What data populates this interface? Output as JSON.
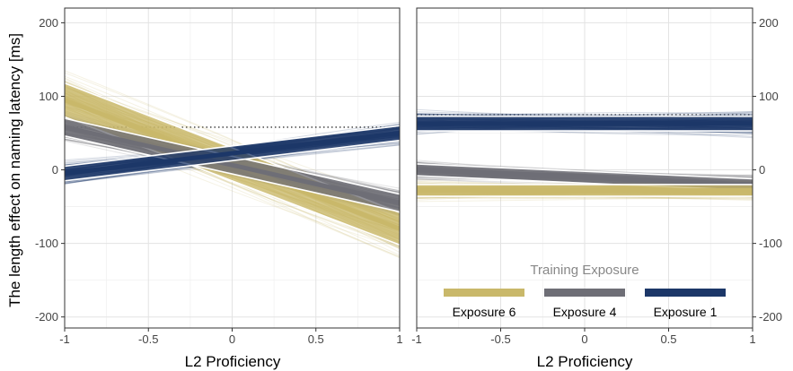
{
  "chart_data": [
    {
      "type": "line",
      "panel": "left",
      "xlabel": "L2 Proficiency",
      "ylabel": "The length effect on naming latency [ms]",
      "xlim": [
        -1,
        1
      ],
      "ylim": [
        -215,
        220
      ],
      "x_ticks": [
        -1,
        -0.5,
        0,
        0.5,
        1
      ],
      "x_tick_labels": [
        "-1",
        "-0.5",
        "0",
        "0.5",
        "1"
      ],
      "y_ticks": [
        200,
        100,
        0,
        -100,
        -200
      ],
      "y_tick_labels": [
        "200",
        "100",
        "0",
        "-100",
        "-200"
      ],
      "y_axis_side": "left",
      "grid": true,
      "reference_line": {
        "y": 58,
        "style": "dotted"
      },
      "x": [
        -1,
        1
      ],
      "series": [
        {
          "name": "Exposure 6",
          "color": "#c9b86a",
          "values": [
            95,
            -80
          ],
          "band": [
            [
              118,
              72
            ],
            [
              -58,
              -102
            ]
          ]
        },
        {
          "name": "Exposure 4",
          "color": "#6e6e76",
          "values": [
            58,
            -45
          ],
          "band": [
            [
              70,
              46
            ],
            [
              -33,
              -57
            ]
          ]
        },
        {
          "name": "Exposure 1",
          "color": "#1c3768",
          "values": [
            -5,
            50
          ],
          "band": [
            [
              5,
              -15
            ],
            [
              60,
              40
            ]
          ]
        }
      ]
    },
    {
      "type": "line",
      "panel": "right",
      "xlabel": "L2 Proficiency",
      "xlim": [
        -1,
        1
      ],
      "ylim": [
        -215,
        220
      ],
      "x_ticks": [
        -1,
        -0.5,
        0,
        0.5,
        1
      ],
      "x_tick_labels": [
        "-1",
        "-0.5",
        "0",
        "0.5",
        "1"
      ],
      "y_ticks": [
        200,
        100,
        0,
        -100,
        -200
      ],
      "y_tick_labels": [
        "200",
        "100",
        "0",
        "-100",
        "-200"
      ],
      "y_axis_side": "right",
      "grid": true,
      "reference_line": {
        "y": 75,
        "style": "dotted"
      },
      "x": [
        -1,
        1
      ],
      "series": [
        {
          "name": "Exposure 1",
          "color": "#1c3768",
          "values": [
            63,
            63
          ],
          "band": [
            [
              73,
              53
            ],
            [
              73,
              53
            ]
          ]
        },
        {
          "name": "Exposure 4",
          "color": "#6e6e76",
          "values": [
            0,
            -20
          ],
          "band": [
            [
              8,
              -8
            ],
            [
              -12,
              -28
            ]
          ]
        },
        {
          "name": "Exposure 6",
          "color": "#c9b86a",
          "values": [
            -28,
            -28
          ],
          "band": [
            [
              -20,
              -36
            ],
            [
              -20,
              -36
            ]
          ]
        }
      ]
    }
  ],
  "legend": {
    "title": "Training Exposure",
    "placement": "bottom-right of right panel",
    "items": [
      {
        "label": "Exposure 6",
        "color": "#c9b86a"
      },
      {
        "label": "Exposure 4",
        "color": "#6e6e76"
      },
      {
        "label": "Exposure 1",
        "color": "#1c3768"
      }
    ]
  }
}
